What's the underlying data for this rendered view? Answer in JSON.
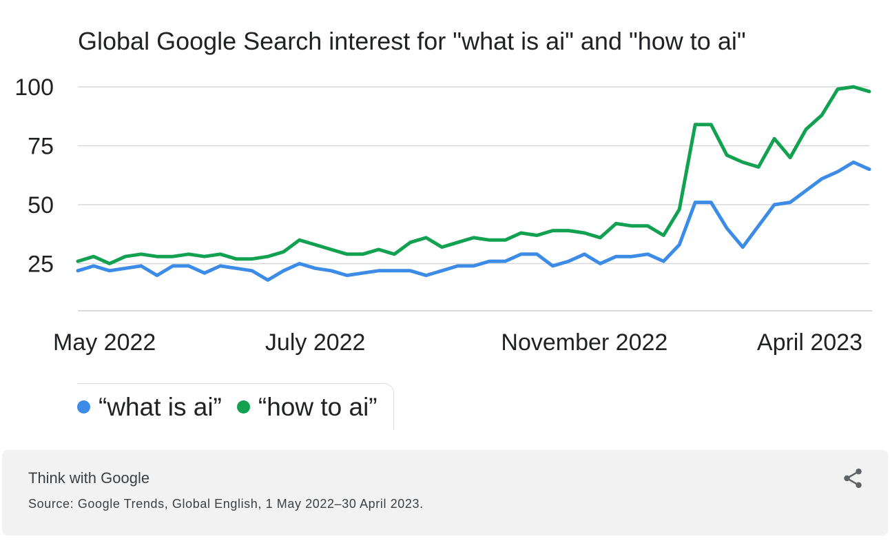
{
  "chart_data": {
    "type": "line",
    "title": "Global Google Search interest for \"what is ai\" and \"how to ai\"",
    "xlabel": "",
    "ylabel": "",
    "ylim": [
      10,
      100
    ],
    "y_ticks": [
      "100",
      "75",
      "50",
      "25"
    ],
    "y_tick_values": [
      100,
      75,
      50,
      25
    ],
    "x_tick_labels": [
      "May 2022",
      "July 2022",
      "November 2022",
      "April 2023"
    ],
    "x_tick_weeks": [
      1,
      15,
      32,
      47
    ],
    "grid": true,
    "legend_position": "bottom-left",
    "series": [
      {
        "name": "“what is ai”",
        "color": "#3c8ce7",
        "values": [
          22,
          24,
          22,
          23,
          24,
          20,
          24,
          24,
          21,
          24,
          23,
          22,
          18,
          22,
          25,
          23,
          22,
          20,
          21,
          22,
          22,
          22,
          20,
          22,
          24,
          24,
          26,
          26,
          29,
          29,
          24,
          26,
          29,
          25,
          28,
          28,
          29,
          26,
          33,
          51,
          51,
          40,
          32,
          41,
          50,
          51,
          56,
          61,
          64,
          68,
          65
        ]
      },
      {
        "name": "“how to ai”",
        "color": "#12a150",
        "values": [
          26,
          28,
          25,
          28,
          29,
          28,
          28,
          29,
          28,
          29,
          27,
          27,
          28,
          30,
          35,
          33,
          31,
          29,
          29,
          31,
          29,
          34,
          36,
          32,
          34,
          36,
          35,
          35,
          38,
          37,
          39,
          39,
          38,
          36,
          42,
          41,
          41,
          37,
          48,
          84,
          84,
          71,
          68,
          66,
          78,
          70,
          82,
          88,
          99,
          100,
          98
        ]
      }
    ]
  },
  "footer": {
    "brand": "Think with Google",
    "source": "Source: Google Trends, Global English, 1 May 2022–30 April 2023.",
    "share_icon": "share-icon"
  }
}
